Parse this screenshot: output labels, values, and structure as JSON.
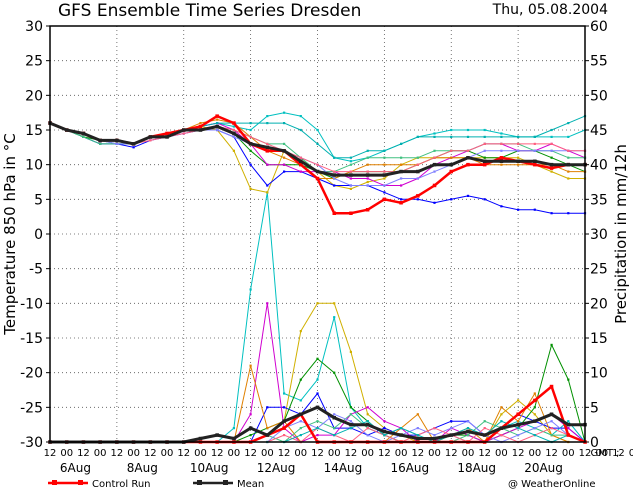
{
  "chart_data": {
    "type": "line",
    "title": "GFS Ensemble Time Series Dresden",
    "date": "Thu, 05.08.2004",
    "ylabel_left": "Temperature 850 hPa in °C",
    "ylabel_right": "Precipitation in mm/12h",
    "ylim_left": [
      -30,
      30
    ],
    "ylim_right": [
      0,
      60
    ],
    "left_ticks": [
      "30",
      "25",
      "20",
      "15",
      "10",
      "5",
      "0",
      "-5",
      "-10",
      "-15",
      "-20",
      "-25",
      "-30"
    ],
    "right_ticks": [
      "60",
      "55",
      "50",
      "45",
      "40",
      "35",
      "30",
      "25",
      "20",
      "15",
      "10",
      "5",
      "0"
    ],
    "x_hour_labels": [
      "12",
      "00",
      "12",
      "00",
      "12",
      "00",
      "12",
      "00",
      "12",
      "00",
      "12",
      "00",
      "12",
      "00",
      "12",
      "00",
      "12",
      "00",
      "12",
      "00",
      "12",
      "00",
      "12",
      "00",
      "12",
      "00",
      "12",
      "00",
      "12",
      "00",
      "12",
      "00",
      "12",
      "00",
      "12",
      "00"
    ],
    "x_last_label": "GMT ;",
    "day_labels": [
      {
        "label": "6Aug",
        "x": 2
      },
      {
        "label": "8Aug",
        "x": 6
      },
      {
        "label": "10Aug",
        "x": 10
      },
      {
        "label": "12Aug",
        "x": 14
      },
      {
        "label": "14Aug",
        "x": 18
      },
      {
        "label": "16Aug",
        "x": 22
      },
      {
        "label": "18Aug",
        "x": 26
      },
      {
        "label": "20Aug",
        "x": 30
      }
    ],
    "grid": true,
    "temperature_series": [
      {
        "name": "Control Run",
        "color": "#ff0000",
        "width": 2.5,
        "values": [
          16,
          15,
          14.5,
          13.5,
          13.5,
          13,
          14,
          14.5,
          15,
          15.5,
          17,
          16,
          13,
          12,
          12,
          10,
          8,
          3,
          3,
          3.5,
          5,
          4.5,
          5.5,
          7,
          9,
          10,
          10,
          11,
          10.5,
          10,
          9.5,
          10,
          10
        ]
      },
      {
        "name": "Mean",
        "color": "#222222",
        "width": 3,
        "values": [
          16,
          15,
          14.5,
          13.5,
          13.5,
          13,
          14,
          14,
          15,
          15,
          15.5,
          14.5,
          13,
          12.5,
          12,
          10.5,
          9,
          8.5,
          8.5,
          8.5,
          8.5,
          9,
          9,
          10,
          10,
          11,
          10.5,
          10.5,
          10.5,
          10.5,
          10,
          10,
          10
        ]
      },
      {
        "color": "#00c0c0",
        "values": [
          16,
          15,
          14,
          13,
          13,
          13,
          14,
          14.5,
          15,
          15.5,
          16,
          15.5,
          15,
          17,
          17.5,
          17,
          15,
          11,
          10.5,
          11,
          12,
          13,
          14,
          14.5,
          15,
          15,
          15,
          14.5,
          14,
          14,
          14,
          14,
          15
        ]
      },
      {
        "color": "#d0b000",
        "values": [
          16,
          15,
          14.5,
          13.5,
          13.5,
          13,
          14,
          14.5,
          15,
          15.5,
          15,
          12,
          6.5,
          6,
          12,
          11,
          9,
          7,
          6.5,
          7.5,
          8,
          10,
          11,
          11,
          11,
          11,
          11,
          11,
          11,
          10,
          9,
          8,
          8
        ]
      },
      {
        "color": "#0000ff",
        "values": [
          16,
          15,
          14,
          13,
          13,
          12.5,
          13.5,
          14,
          14.5,
          15,
          15,
          14,
          10,
          7,
          9,
          9,
          8,
          7,
          7,
          7,
          6,
          5,
          5,
          4.5,
          5,
          5.5,
          5,
          4,
          3.5,
          3.5,
          3,
          3,
          3
        ]
      },
      {
        "color": "#009000",
        "values": [
          16,
          15,
          14,
          13.5,
          13,
          13,
          14,
          14,
          15,
          15,
          15.5,
          14.5,
          12,
          10,
          10,
          10,
          9,
          8,
          9,
          9,
          9,
          9,
          10,
          11,
          12,
          12,
          11,
          11,
          12,
          12,
          11,
          10,
          9
        ]
      },
      {
        "color": "#d000d0",
        "values": [
          16,
          15,
          14.5,
          13.5,
          13.5,
          13,
          14,
          14.5,
          15,
          15.5,
          16,
          15,
          13,
          10,
          10,
          9,
          9,
          9,
          8,
          8,
          7,
          7,
          8,
          10,
          11,
          12,
          13,
          13,
          12,
          12,
          13,
          12,
          11
        ]
      },
      {
        "color": "#e08000",
        "values": [
          16,
          15,
          14.5,
          13.5,
          13.5,
          13,
          14,
          14.5,
          15,
          16,
          16.5,
          16,
          14,
          12,
          11,
          10,
          8,
          8,
          9,
          10,
          10,
          10,
          10,
          11,
          11,
          11,
          10,
          10,
          10,
          10,
          10,
          9,
          9
        ]
      },
      {
        "color": "#40c080",
        "values": [
          16,
          15,
          14,
          13,
          13,
          13,
          14,
          14.5,
          15,
          15,
          15.5,
          15,
          14,
          13,
          13,
          11,
          9,
          9,
          10,
          11,
          11,
          11,
          11,
          12,
          12,
          12,
          13,
          13,
          13,
          12,
          12,
          11,
          11
        ]
      },
      {
        "color": "#8080ff",
        "values": [
          16,
          15,
          14.5,
          13.5,
          13,
          13,
          14,
          14,
          14.5,
          15,
          15,
          14,
          13,
          12,
          12,
          11,
          10,
          8,
          7,
          7,
          7,
          8,
          8,
          9,
          10,
          11,
          12,
          12,
          12,
          12,
          12,
          12,
          12
        ]
      },
      {
        "color": "#ff6080",
        "values": [
          16,
          15,
          14.5,
          13.5,
          13.5,
          13,
          13.5,
          14,
          14.5,
          15,
          15.5,
          15,
          14,
          13,
          12,
          11,
          10,
          9,
          9,
          9,
          9,
          9,
          10,
          11,
          12,
          12,
          13,
          13,
          13,
          13,
          13,
          12,
          12
        ]
      },
      {
        "color": "#00b0b0",
        "values": [
          16,
          15,
          14.5,
          13.5,
          13.5,
          13,
          14,
          14.5,
          15,
          15.5,
          16,
          16,
          16,
          16,
          16,
          15,
          13,
          11,
          11,
          12,
          12,
          13,
          14,
          14,
          14,
          14,
          14,
          14,
          14,
          14,
          15,
          16,
          17
        ]
      }
    ],
    "precip_series": [
      {
        "name": "Control Run",
        "color": "#ff0000",
        "width": 2.5,
        "values": [
          0,
          0,
          0,
          0,
          0,
          0,
          0,
          0,
          0,
          0,
          0,
          0,
          0,
          1,
          2,
          4,
          0,
          0,
          0,
          0,
          0,
          0,
          0,
          0,
          0,
          0,
          0,
          2,
          4,
          6,
          8,
          1,
          0
        ]
      },
      {
        "name": "Mean",
        "color": "#222222",
        "width": 3,
        "values": [
          0,
          0,
          0,
          0,
          0,
          0,
          0,
          0,
          0,
          0.5,
          1,
          0.5,
          2,
          1,
          3,
          4,
          5,
          3.5,
          2.5,
          2.5,
          1.5,
          1,
          0.5,
          0.5,
          1,
          1.5,
          1,
          2,
          2.5,
          3,
          4,
          2.5,
          2.5
        ]
      },
      {
        "color": "#00c0c0",
        "values": [
          0,
          0,
          0,
          0,
          0,
          0,
          0,
          0,
          0,
          0,
          0,
          2,
          22,
          36,
          7,
          6,
          9,
          18,
          5,
          2,
          1,
          0,
          0,
          0,
          1,
          0,
          0,
          2,
          3,
          2,
          1,
          3,
          0
        ]
      },
      {
        "color": "#d0b000",
        "values": [
          0,
          0,
          0,
          0,
          0,
          0,
          0,
          0,
          0,
          0,
          0,
          0,
          0,
          1,
          3,
          16,
          20,
          20,
          13,
          4,
          2,
          1,
          0,
          0,
          0,
          0,
          0,
          4,
          6,
          4,
          1,
          0,
          0
        ]
      },
      {
        "color": "#0000ff",
        "values": [
          0,
          0,
          0,
          0,
          0,
          0,
          0,
          0,
          0,
          0,
          0,
          0,
          0,
          5,
          5,
          4,
          7,
          2,
          2,
          1,
          2,
          1,
          1,
          2,
          3,
          3,
          1,
          2,
          4,
          3,
          2,
          2,
          0
        ]
      },
      {
        "color": "#009000",
        "values": [
          0,
          0,
          0,
          0,
          0,
          0,
          0,
          0,
          0,
          0,
          0,
          0,
          1,
          2,
          3,
          9,
          12,
          10,
          5,
          3,
          1,
          0,
          0,
          0,
          1,
          1,
          0,
          1,
          2,
          5,
          14,
          9,
          0
        ]
      },
      {
        "color": "#d000d0",
        "values": [
          0,
          0,
          0,
          0,
          0,
          0,
          0,
          0,
          0,
          0,
          0,
          0,
          4,
          20,
          2,
          0,
          1,
          1,
          4,
          5,
          3,
          2,
          0,
          0,
          2,
          1,
          0,
          1,
          2,
          3,
          4,
          2,
          0
        ]
      },
      {
        "color": "#e08000",
        "values": [
          0,
          0,
          0,
          0,
          0,
          0,
          0,
          0,
          0,
          0,
          0,
          0,
          11,
          2,
          3,
          0,
          0,
          0,
          0,
          0,
          0,
          2,
          4,
          0,
          1,
          2,
          0,
          5,
          3,
          7,
          1,
          0,
          0
        ]
      },
      {
        "color": "#40c080",
        "values": [
          0,
          0,
          0,
          0,
          0,
          0,
          0,
          0,
          0,
          0,
          0,
          0,
          0,
          1,
          0,
          2,
          3,
          2,
          4,
          2,
          1,
          2,
          1,
          0,
          0,
          1,
          3,
          2,
          1,
          2,
          1,
          1,
          0
        ]
      },
      {
        "color": "#8080ff",
        "values": [
          0,
          0,
          0,
          0,
          0,
          0,
          0,
          0,
          0,
          0,
          0,
          0,
          0,
          0,
          2,
          3,
          2,
          4,
          3,
          1,
          0,
          1,
          2,
          1,
          2,
          3,
          1,
          0,
          1,
          2,
          3,
          1,
          0
        ]
      },
      {
        "color": "#ff6080",
        "values": [
          0,
          0,
          0,
          0,
          0,
          0,
          0,
          0,
          0,
          0,
          0,
          0,
          0,
          0,
          1,
          0,
          2,
          1,
          0,
          2,
          1,
          0,
          1,
          2,
          1,
          0,
          2,
          1,
          0,
          1,
          2,
          1,
          0
        ]
      },
      {
        "color": "#00b0b0",
        "values": [
          0,
          0,
          0,
          0,
          0,
          0,
          0,
          0,
          0,
          0,
          0,
          0,
          0,
          0,
          0,
          1,
          2,
          1,
          2,
          3,
          1,
          2,
          1,
          0,
          1,
          2,
          1,
          3,
          2,
          1,
          0,
          1,
          0
        ]
      }
    ]
  },
  "legend": {
    "control_label": "Control Run",
    "mean_label": "Mean",
    "credit": "@ WeatherOnline"
  }
}
